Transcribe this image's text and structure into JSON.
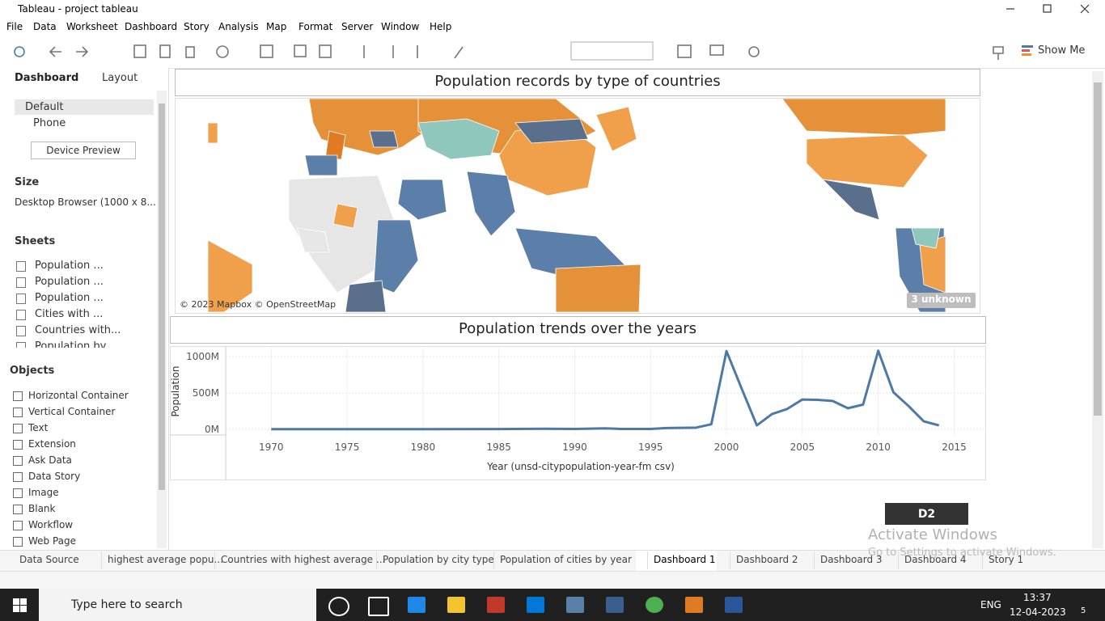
{
  "window": {
    "title": "Tableau - project tableau"
  },
  "menu": [
    "File",
    "Data",
    "Worksheet",
    "Dashboard",
    "Story",
    "Analysis",
    "Map",
    "Format",
    "Server",
    "Window",
    "Help"
  ],
  "toolbar": {
    "show_me": "Show Me"
  },
  "sidebar": {
    "tabs": [
      "Dashboard",
      "Layout"
    ],
    "devices": [
      "Default",
      "Phone"
    ],
    "device_preview": "Device Preview",
    "size_title": "Size",
    "size_value": "Desktop Browser (1000 x 8...",
    "sheets_title": "Sheets",
    "sheets": [
      "Population ...",
      "Population ...",
      "Population ...",
      "Cities with ...",
      "Countries with...",
      "Population by..."
    ],
    "objects_title": "Objects",
    "objects": [
      "Horizontal Container",
      "Vertical Container",
      "Text",
      "Extension",
      "Ask Data",
      "Data Story",
      "Image",
      "Blank",
      "Workflow",
      "Web Page"
    ]
  },
  "dashboard": {
    "map_title": "Population records by type of countries",
    "map_attribution": "© 2023 Mapbox © OpenStreetMap",
    "map_unknown": "3 unknown",
    "button": "D2"
  },
  "chart_data": {
    "type": "line",
    "title": "Population trends over  the  years",
    "x_label": "Year (unsd-citypopulation-year-fm csv)",
    "y_label": "Population",
    "x": [
      1970,
      1975,
      1980,
      1985,
      1988,
      1990,
      1992,
      1993,
      1995,
      1996,
      1998,
      1999,
      2000,
      2001,
      2002,
      2003,
      2004,
      2005,
      2006,
      2007,
      2008,
      2009,
      2010,
      2011,
      2012,
      2013,
      2014
    ],
    "values": [
      2,
      3,
      3,
      4,
      8,
      5,
      14,
      6,
      6,
      18,
      24,
      70,
      1075,
      560,
      55,
      210,
      280,
      410,
      405,
      390,
      290,
      340,
      1080,
      510,
      320,
      110,
      55
    ],
    "color": "#4e79a7",
    "xlim": [
      1967,
      2017
    ],
    "xticks": [
      1970,
      1975,
      1980,
      1985,
      1990,
      1995,
      2000,
      2005,
      2010,
      2015
    ],
    "ylim": [
      -78,
      1122
    ],
    "yticks": [
      {
        "value": 0,
        "label": "0M"
      },
      {
        "value": 500,
        "label": "500M"
      },
      {
        "value": 1000,
        "label": "1000M"
      }
    ],
    "grid": true
  },
  "tabs": [
    "Data Source",
    "highest average popu...",
    "Countries with highest average ...",
    "Population by city type",
    "Population  of cities by year",
    "Dashboard 1",
    "Dashboard 2",
    "Dashboard 3",
    "Dashboard 4",
    "Story 1"
  ],
  "watermark": [
    "Activate Windows",
    "Go to Settings to activate Windows."
  ],
  "taskbar": {
    "search": "Type here to search",
    "language": "ENG",
    "time": "13:37",
    "date": "12-04-2023",
    "notifications": "5"
  }
}
